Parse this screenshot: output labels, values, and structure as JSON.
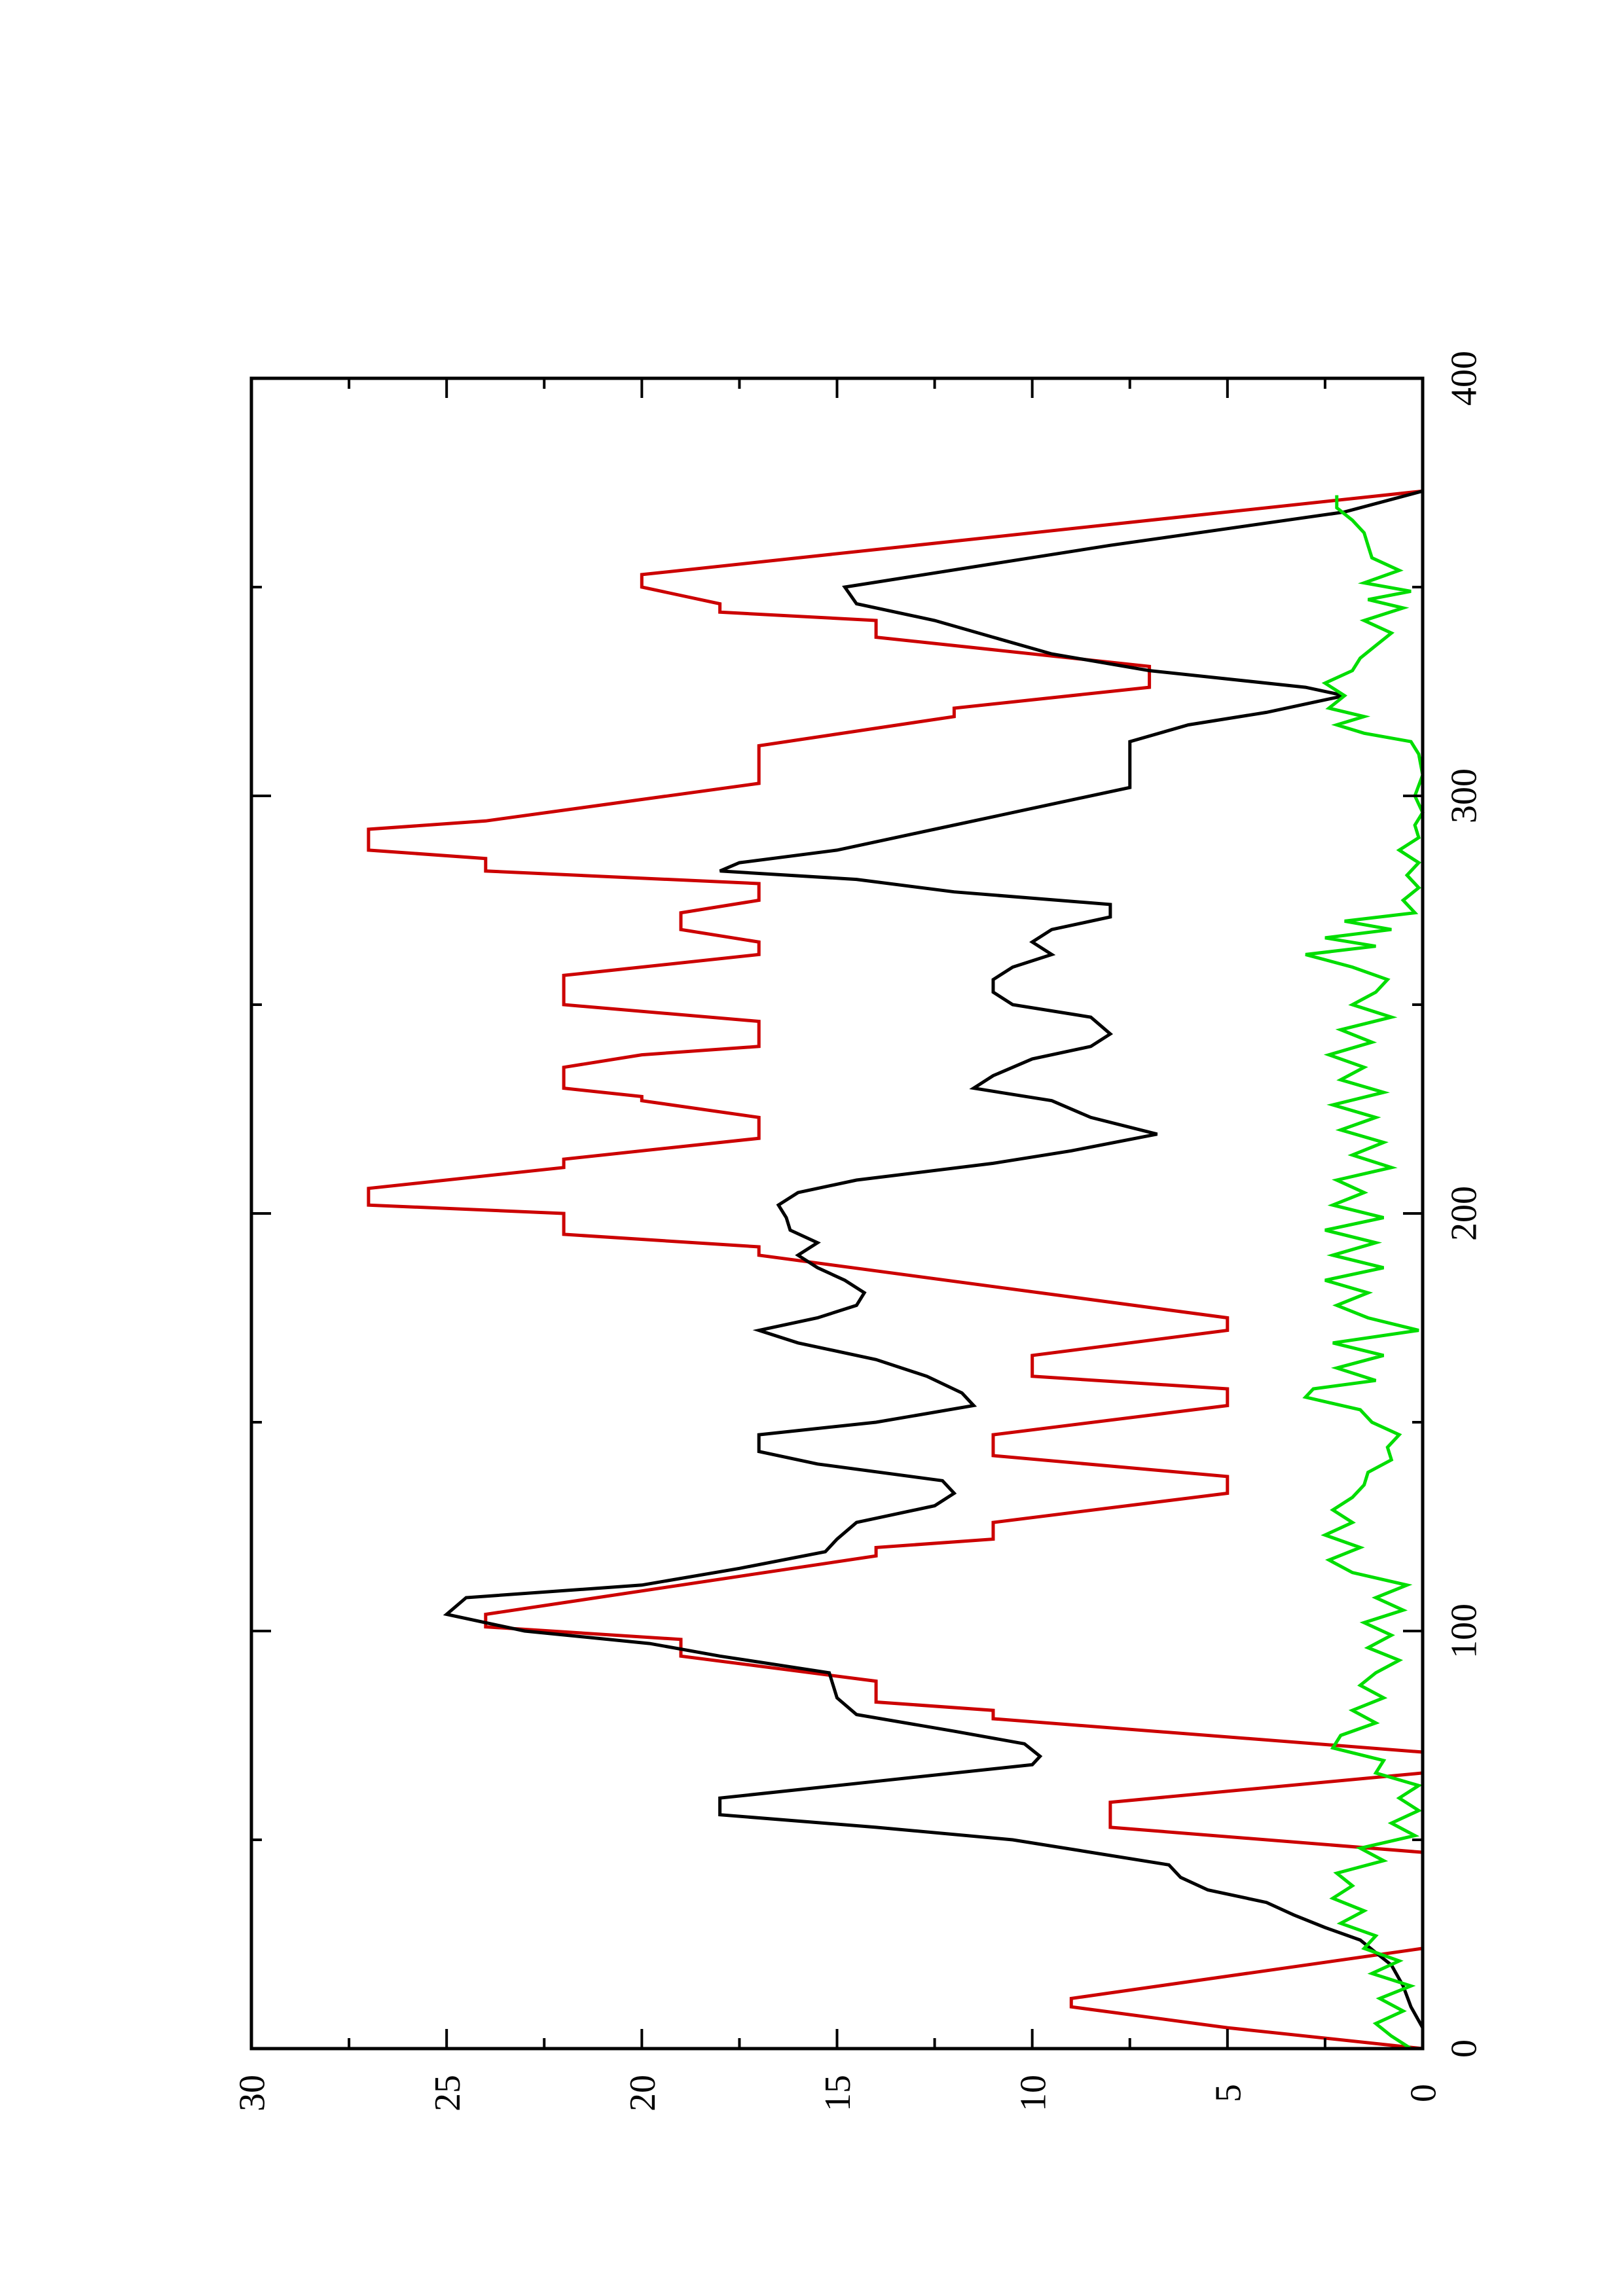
{
  "chart_data": {
    "type": "line",
    "orientation": "rotated-90-ccw",
    "title": "",
    "xlabel": "",
    "ylabel": "",
    "xlim": [
      0,
      400
    ],
    "ylim": [
      0,
      30
    ],
    "x_ticks": [
      0,
      100,
      200,
      300,
      400
    ],
    "y_ticks": [
      0,
      5,
      10,
      15,
      20,
      25,
      30
    ],
    "x_minor_ticks": [
      50,
      150,
      250,
      350
    ],
    "y_minor_ticks": [
      2.5,
      7.5,
      12.5,
      17.5,
      22.5,
      27.5
    ],
    "grid": false,
    "legend": "none",
    "series": [
      {
        "color": "#cc0000",
        "points": [
          [
            0,
            0
          ],
          [
            5,
            5
          ],
          [
            10,
            9
          ],
          [
            12,
            9
          ],
          [
            24,
            0
          ],
          [
            47,
            0
          ],
          [
            53,
            8
          ],
          [
            59,
            8
          ],
          [
            66,
            0
          ],
          [
            71,
            0
          ],
          [
            79,
            11
          ],
          [
            81,
            11
          ],
          [
            83,
            14
          ],
          [
            88,
            14
          ],
          [
            94,
            19
          ],
          [
            98,
            19
          ],
          [
            101,
            24
          ],
          [
            104,
            24
          ],
          [
            111,
            19
          ],
          [
            118,
            14
          ],
          [
            120,
            14
          ],
          [
            122,
            11
          ],
          [
            126,
            11
          ],
          [
            133,
            5
          ],
          [
            137,
            5
          ],
          [
            142,
            11
          ],
          [
            147,
            11
          ],
          [
            154,
            5
          ],
          [
            158,
            5
          ],
          [
            161,
            10
          ],
          [
            166,
            10
          ],
          [
            172,
            5
          ],
          [
            175,
            5
          ],
          [
            190,
            17
          ],
          [
            192,
            17
          ],
          [
            195,
            22
          ],
          [
            200,
            22
          ],
          [
            202,
            27
          ],
          [
            206,
            27
          ],
          [
            211,
            22
          ],
          [
            213,
            22
          ],
          [
            218,
            17
          ],
          [
            223,
            17
          ],
          [
            227,
            20
          ],
          [
            228,
            20
          ],
          [
            230,
            22
          ],
          [
            235,
            22
          ],
          [
            238,
            20
          ],
          [
            240,
            17
          ],
          [
            246,
            17
          ],
          [
            250,
            22
          ],
          [
            257,
            22
          ],
          [
            262,
            17
          ],
          [
            265,
            17
          ],
          [
            268,
            19
          ],
          [
            272,
            19
          ],
          [
            275,
            17
          ],
          [
            279,
            17
          ],
          [
            282,
            24
          ],
          [
            285,
            24
          ],
          [
            287,
            27
          ],
          [
            292,
            27
          ],
          [
            294,
            24
          ],
          [
            303,
            17
          ],
          [
            312,
            17
          ],
          [
            319,
            12
          ],
          [
            321,
            12
          ],
          [
            326,
            7
          ],
          [
            331,
            7
          ],
          [
            338,
            14
          ],
          [
            342,
            14
          ],
          [
            344,
            18
          ],
          [
            346,
            18
          ],
          [
            350,
            20
          ],
          [
            353,
            20
          ],
          [
            373,
            0
          ]
        ]
      },
      {
        "color": "#000000",
        "points": [
          [
            0,
            0
          ],
          [
            5,
            0
          ],
          [
            10,
            0.3
          ],
          [
            15,
            0.5
          ],
          [
            20,
            0.8
          ],
          [
            23,
            1.2
          ],
          [
            26,
            1.6
          ],
          [
            29,
            2.5
          ],
          [
            32,
            3.3
          ],
          [
            35,
            4
          ],
          [
            38,
            5.5
          ],
          [
            41,
            6.2
          ],
          [
            44,
            6.5
          ],
          [
            47,
            8.5
          ],
          [
            50,
            10.5
          ],
          [
            53,
            14
          ],
          [
            56,
            18
          ],
          [
            60,
            18
          ],
          [
            64,
            14
          ],
          [
            68,
            10
          ],
          [
            70,
            9.8
          ],
          [
            73,
            10.2
          ],
          [
            76,
            12
          ],
          [
            80,
            14.5
          ],
          [
            84,
            15
          ],
          [
            90,
            15.2
          ],
          [
            94,
            18
          ],
          [
            97,
            19.8
          ],
          [
            100,
            23
          ],
          [
            104,
            25
          ],
          [
            108,
            24.5
          ],
          [
            111,
            20
          ],
          [
            115,
            17.5
          ],
          [
            119,
            15.3
          ],
          [
            122,
            15
          ],
          [
            126,
            14.5
          ],
          [
            130,
            12.5
          ],
          [
            133,
            12
          ],
          [
            136,
            12.3
          ],
          [
            140,
            15.5
          ],
          [
            143,
            17
          ],
          [
            147,
            17
          ],
          [
            150,
            14
          ],
          [
            154,
            11.5
          ],
          [
            157,
            11.8
          ],
          [
            161,
            12.7
          ],
          [
            165,
            14
          ],
          [
            169,
            16
          ],
          [
            172,
            17
          ],
          [
            175,
            15.5
          ],
          [
            178,
            14.5
          ],
          [
            181,
            14.3
          ],
          [
            184,
            14.8
          ],
          [
            187,
            15.5
          ],
          [
            190,
            16
          ],
          [
            193,
            15.5
          ],
          [
            196,
            16.2
          ],
          [
            199,
            16.3
          ],
          [
            202,
            16.5
          ],
          [
            205,
            16
          ],
          [
            208,
            14.5
          ],
          [
            212,
            11
          ],
          [
            215,
            9
          ],
          [
            219,
            6.8
          ],
          [
            223,
            8.5
          ],
          [
            227,
            9.5
          ],
          [
            230,
            11.5
          ],
          [
            233,
            11
          ],
          [
            237,
            10
          ],
          [
            240,
            8.5
          ],
          [
            243,
            8
          ],
          [
            247,
            8.5
          ],
          [
            250,
            10.5
          ],
          [
            253,
            11
          ],
          [
            256,
            11
          ],
          [
            259,
            10.5
          ],
          [
            262,
            9.5
          ],
          [
            265,
            10
          ],
          [
            268,
            9.5
          ],
          [
            271,
            8
          ],
          [
            274,
            8
          ],
          [
            277,
            12
          ],
          [
            280,
            14.5
          ],
          [
            282,
            18
          ],
          [
            284,
            17.5
          ],
          [
            287,
            15
          ],
          [
            292,
            12.5
          ],
          [
            297,
            10
          ],
          [
            302,
            7.5
          ],
          [
            313,
            7.5
          ],
          [
            317,
            6
          ],
          [
            320,
            4
          ],
          [
            324,
            2
          ],
          [
            326,
            3
          ],
          [
            330,
            7
          ],
          [
            334,
            9.5
          ],
          [
            338,
            11
          ],
          [
            342,
            12.5
          ],
          [
            346,
            14.5
          ],
          [
            350,
            14.8
          ],
          [
            360,
            8
          ],
          [
            368,
            2
          ],
          [
            373,
            0
          ]
        ]
      },
      {
        "color": "#00dd00",
        "points": [
          [
            0,
            0.3
          ],
          [
            3,
            0.8
          ],
          [
            6,
            1.2
          ],
          [
            9,
            0.5
          ],
          [
            12,
            1.1
          ],
          [
            15,
            0.3
          ],
          [
            18,
            1.3
          ],
          [
            21,
            0.6
          ],
          [
            24,
            1.5
          ],
          [
            27,
            1.2
          ],
          [
            30,
            2.1
          ],
          [
            33,
            1.5
          ],
          [
            36,
            2.3
          ],
          [
            39,
            1.8
          ],
          [
            42,
            2.2
          ],
          [
            45,
            1.0
          ],
          [
            48,
            1.6
          ],
          [
            51,
            0.2
          ],
          [
            54,
            0.8
          ],
          [
            57,
            0.1
          ],
          [
            60,
            0.6
          ],
          [
            63,
            0.1
          ],
          [
            66,
            1.2
          ],
          [
            69,
            1.0
          ],
          [
            72,
            2.3
          ],
          [
            75,
            2.1
          ],
          [
            78,
            1.2
          ],
          [
            81,
            1.8
          ],
          [
            84,
            1.0
          ],
          [
            87,
            1.6
          ],
          [
            90,
            1.2
          ],
          [
            93,
            0.6
          ],
          [
            96,
            1.4
          ],
          [
            99,
            0.8
          ],
          [
            102,
            1.5
          ],
          [
            105,
            0.5
          ],
          [
            108,
            1.2
          ],
          [
            111,
            0.4
          ],
          [
            114,
            1.8
          ],
          [
            117,
            2.4
          ],
          [
            120,
            1.6
          ],
          [
            123,
            2.5
          ],
          [
            126,
            1.8
          ],
          [
            129,
            2.3
          ],
          [
            132,
            1.8
          ],
          [
            135,
            1.5
          ],
          [
            138,
            1.4
          ],
          [
            141,
            0.8
          ],
          [
            144,
            0.9
          ],
          [
            147,
            0.6
          ],
          [
            150,
            1.3
          ],
          [
            153,
            1.6
          ],
          [
            156,
            3.0
          ],
          [
            158,
            2.8
          ],
          [
            160,
            1.2
          ],
          [
            163,
            2.2
          ],
          [
            166,
            1.0
          ],
          [
            169,
            2.3
          ],
          [
            172,
            0.1
          ],
          [
            175,
            1.4
          ],
          [
            178,
            2.2
          ],
          [
            181,
            1.4
          ],
          [
            184,
            2.5
          ],
          [
            187,
            1.0
          ],
          [
            190,
            2.3
          ],
          [
            193,
            1.2
          ],
          [
            196,
            2.5
          ],
          [
            199,
            1.0
          ],
          [
            202,
            2.3
          ],
          [
            205,
            1.5
          ],
          [
            208,
            2.2
          ],
          [
            211,
            0.8
          ],
          [
            214,
            1.8
          ],
          [
            217,
            1.0
          ],
          [
            220,
            2.1
          ],
          [
            223,
            1.2
          ],
          [
            226,
            2.3
          ],
          [
            229,
            1.0
          ],
          [
            232,
            2.1
          ],
          [
            235,
            1.5
          ],
          [
            238,
            2.4
          ],
          [
            241,
            1.3
          ],
          [
            244,
            2.1
          ],
          [
            247,
            0.8
          ],
          [
            250,
            1.8
          ],
          [
            253,
            1.2
          ],
          [
            256,
            0.9
          ],
          [
            259,
            1.8
          ],
          [
            262,
            3.0
          ],
          [
            264,
            1.2
          ],
          [
            266,
            2.5
          ],
          [
            268,
            0.8
          ],
          [
            270,
            2.0
          ],
          [
            272,
            0.2
          ],
          [
            275,
            0.5
          ],
          [
            278,
            0.1
          ],
          [
            281,
            0.4
          ],
          [
            284,
            0.1
          ],
          [
            287,
            0.6
          ],
          [
            290,
            0.1
          ],
          [
            293,
            0.2
          ],
          [
            296,
            0.0
          ],
          [
            300,
            0.2
          ],
          [
            305,
            0.0
          ],
          [
            310,
            0.1
          ],
          [
            313,
            0.3
          ],
          [
            315,
            1.5
          ],
          [
            317,
            2.2
          ],
          [
            319,
            1.5
          ],
          [
            321,
            2.4
          ],
          [
            324,
            2.0
          ],
          [
            327,
            2.5
          ],
          [
            330,
            1.8
          ],
          [
            333,
            1.6
          ],
          [
            336,
            1.2
          ],
          [
            339,
            0.8
          ],
          [
            342,
            1.5
          ],
          [
            345,
            0.5
          ],
          [
            347,
            1.4
          ],
          [
            349,
            0.3
          ],
          [
            351,
            1.5
          ],
          [
            354,
            0.6
          ],
          [
            357,
            1.3
          ],
          [
            360,
            1.4
          ],
          [
            363,
            1.5
          ],
          [
            366,
            1.8
          ],
          [
            369,
            2.2
          ],
          [
            372,
            2.2
          ]
        ]
      }
    ]
  }
}
